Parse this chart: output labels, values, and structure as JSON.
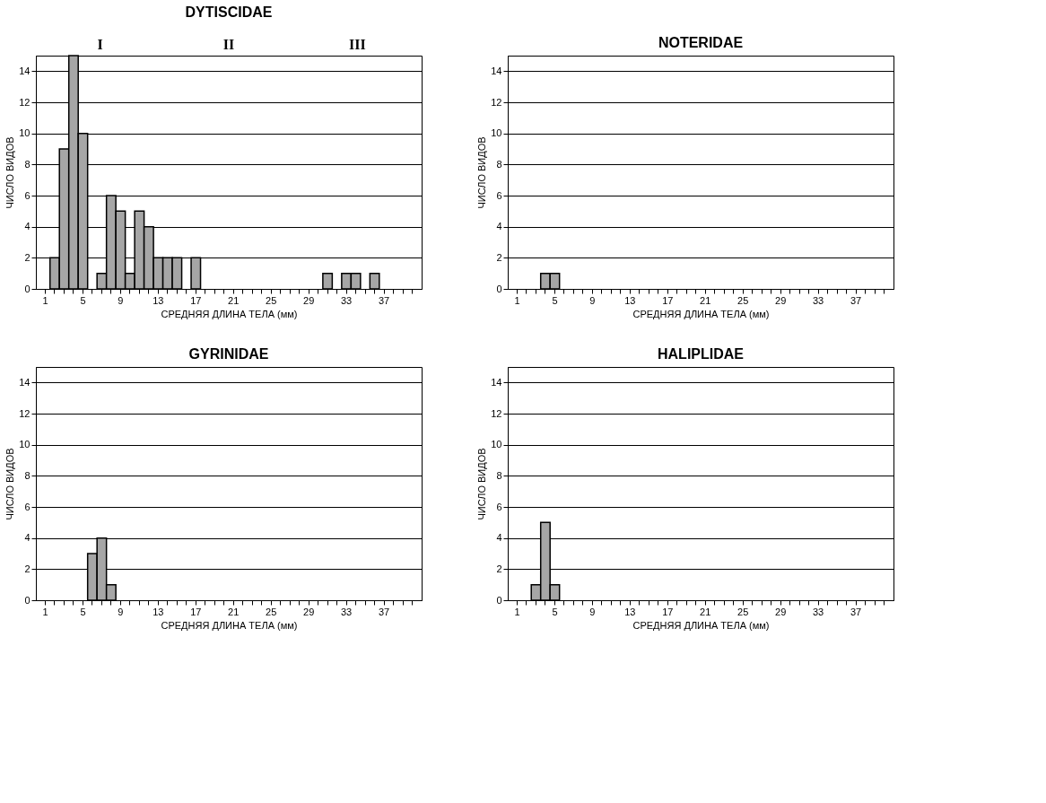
{
  "chart_data": [
    {
      "type": "bar",
      "title": "DYTISCIDAE",
      "xlabel": "СРЕДНЯЯ ДЛИНА ТЕЛА (мм)",
      "ylabel": "ЧИСЛО ВИДОВ",
      "categories": [
        "1",
        null,
        null,
        null,
        "5",
        null,
        null,
        null,
        "9",
        null,
        null,
        null,
        "13",
        null,
        null,
        null,
        "17",
        null,
        null,
        null,
        "21",
        null,
        null,
        null,
        "25",
        null,
        null,
        null,
        "29",
        null,
        null,
        null,
        "33",
        null,
        null,
        null,
        "37",
        null,
        null,
        null
      ],
      "series": [
        {
          "color": "#a6a6a6",
          "values": [
            0,
            2,
            9,
            15,
            10,
            0,
            1,
            6,
            5,
            1,
            5,
            4,
            2,
            2,
            2,
            0,
            2,
            0,
            0,
            0,
            0,
            0,
            0,
            0,
            0,
            0,
            0,
            0,
            0,
            0,
            1,
            0,
            1,
            1,
            0,
            1,
            0,
            0,
            0,
            0
          ]
        }
      ],
      "ylim": [
        0,
        15
      ],
      "yticks": [
        0,
        2,
        4,
        6,
        8,
        10,
        12,
        14
      ],
      "grid": "y",
      "annotations": [
        "I",
        "II",
        "III"
      ]
    },
    {
      "type": "bar",
      "title": "NOTERIDAE",
      "xlabel": "СРЕДНЯЯ ДЛИНА ТЕЛА (мм)",
      "ylabel": "ЧИСЛО ВИДОВ",
      "categories": [
        "1",
        null,
        null,
        null,
        "5",
        null,
        null,
        null,
        "9",
        null,
        null,
        null,
        "13",
        null,
        null,
        null,
        "17",
        null,
        null,
        null,
        "21",
        null,
        null,
        null,
        "25",
        null,
        null,
        null,
        "29",
        null,
        null,
        null,
        "33",
        null,
        null,
        null,
        "37",
        null,
        null,
        null
      ],
      "series": [
        {
          "color": "#a6a6a6",
          "values": [
            0,
            0,
            0,
            1,
            1,
            0,
            0,
            0,
            0,
            0,
            0,
            0,
            0,
            0,
            0,
            0,
            0,
            0,
            0,
            0,
            0,
            0,
            0,
            0,
            0,
            0,
            0,
            0,
            0,
            0,
            0,
            0,
            0,
            0,
            0,
            0,
            0,
            0,
            0,
            0
          ]
        }
      ],
      "ylim": [
        0,
        15
      ],
      "yticks": [
        0,
        2,
        4,
        6,
        8,
        10,
        12,
        14
      ],
      "grid": "y"
    },
    {
      "type": "bar",
      "title": "GYRINIDAE",
      "xlabel": "СРЕДНЯЯ ДЛИНА ТЕЛА (мм)",
      "ylabel": "ЧИСЛО ВИДОВ",
      "categories": [
        "1",
        null,
        null,
        null,
        "5",
        null,
        null,
        null,
        "9",
        null,
        null,
        null,
        "13",
        null,
        null,
        null,
        "17",
        null,
        null,
        null,
        "21",
        null,
        null,
        null,
        "25",
        null,
        null,
        null,
        "29",
        null,
        null,
        null,
        "33",
        null,
        null,
        null,
        "37",
        null,
        null,
        null
      ],
      "series": [
        {
          "color": "#a6a6a6",
          "values": [
            0,
            0,
            0,
            0,
            0,
            3,
            4,
            1,
            0,
            0,
            0,
            0,
            0,
            0,
            0,
            0,
            0,
            0,
            0,
            0,
            0,
            0,
            0,
            0,
            0,
            0,
            0,
            0,
            0,
            0,
            0,
            0,
            0,
            0,
            0,
            0,
            0,
            0,
            0,
            0
          ]
        }
      ],
      "ylim": [
        0,
        15
      ],
      "yticks": [
        0,
        2,
        4,
        6,
        8,
        10,
        12,
        14
      ],
      "grid": "y"
    },
    {
      "type": "bar",
      "title": "HALIPLIDAE",
      "xlabel": "СРЕДНЯЯ ДЛИНА ТЕЛА (мм)",
      "ylabel": "ЧИСЛО ВИДОВ",
      "categories": [
        "1",
        null,
        null,
        null,
        "5",
        null,
        null,
        null,
        "9",
        null,
        null,
        null,
        "13",
        null,
        null,
        null,
        "17",
        null,
        null,
        null,
        "21",
        null,
        null,
        null,
        "25",
        null,
        null,
        null,
        "29",
        null,
        null,
        null,
        "33",
        null,
        null,
        null,
        "37",
        null,
        null,
        null
      ],
      "series": [
        {
          "color": "#a6a6a6",
          "values": [
            0,
            0,
            1,
            5,
            1,
            0,
            0,
            0,
            0,
            0,
            0,
            0,
            0,
            0,
            0,
            0,
            0,
            0,
            0,
            0,
            0,
            0,
            0,
            0,
            0,
            0,
            0,
            0,
            0,
            0,
            0,
            0,
            0,
            0,
            0,
            0,
            0,
            0,
            0,
            0
          ]
        }
      ],
      "ylim": [
        0,
        15
      ],
      "yticks": [
        0,
        2,
        4,
        6,
        8,
        10,
        12,
        14
      ],
      "grid": "y"
    }
  ]
}
